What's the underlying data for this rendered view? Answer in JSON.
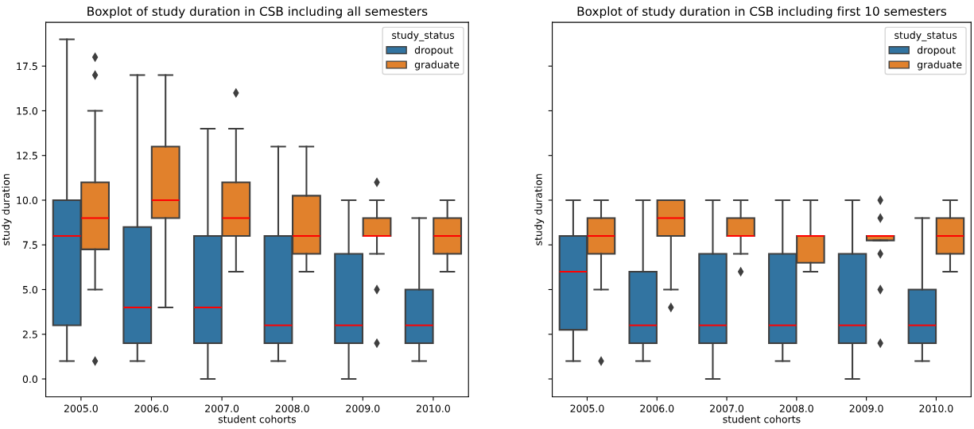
{
  "chart_data": [
    {
      "type": "box",
      "title": "Boxplot of study duration in CSB including all semesters",
      "xlabel": "student cohorts",
      "ylabel": "study duration",
      "legend_title": "study_status",
      "legend": "top right",
      "grid": false,
      "marker": "diamond",
      "categories": [
        "2005.0",
        "2006.0",
        "2007.0",
        "2008.0",
        "2009.0",
        "2010.0"
      ],
      "ylim": [
        -1,
        19.95
      ],
      "yticks": [
        {
          "value": 0,
          "label": "0.0"
        },
        {
          "value": 2.5,
          "label": "2.5"
        },
        {
          "value": 5,
          "label": "5.0"
        },
        {
          "value": 7.5,
          "label": "7.5"
        },
        {
          "value": 10,
          "label": "10.0"
        },
        {
          "value": 12.5,
          "label": "12.5"
        },
        {
          "value": 15,
          "label": "15.0"
        },
        {
          "value": 17.5,
          "label": "17.5"
        }
      ],
      "series": [
        {
          "name": "dropout",
          "color": "#3274a1",
          "boxes": [
            {
              "low": 1,
              "q1": 3,
              "median": 8,
              "q3": 10,
              "high": 19
            },
            {
              "low": 1,
              "q1": 2,
              "median": 4,
              "q3": 8.5,
              "high": 17
            },
            {
              "low": 0,
              "q1": 2,
              "median": 4,
              "q3": 8,
              "high": 14
            },
            {
              "low": 1,
              "q1": 2,
              "median": 3,
              "q3": 8,
              "high": 13
            },
            {
              "low": 0,
              "q1": 2,
              "median": 3,
              "q3": 7,
              "high": 10
            },
            {
              "low": 1,
              "q1": 2,
              "median": 3,
              "q3": 5,
              "high": 9
            }
          ]
        },
        {
          "name": "graduate",
          "color": "#e1812c",
          "boxes": [
            {
              "low": 5,
              "q1": 7.25,
              "median": 9,
              "q3": 11,
              "high": 15,
              "outliers": [
                1,
                17,
                18
              ]
            },
            {
              "low": 4,
              "q1": 9,
              "median": 10,
              "q3": 13,
              "high": 17
            },
            {
              "low": 6,
              "q1": 8,
              "median": 9,
              "q3": 11,
              "high": 14,
              "outliers": [
                16
              ]
            },
            {
              "low": 6,
              "q1": 7,
              "median": 8,
              "q3": 10.25,
              "high": 13
            },
            {
              "low": 7,
              "q1": 8,
              "median": 8,
              "q3": 9,
              "high": 10,
              "outliers": [
                2,
                5,
                11
              ]
            },
            {
              "low": 6,
              "q1": 7,
              "median": 8,
              "q3": 9,
              "high": 10
            }
          ]
        }
      ]
    },
    {
      "type": "box",
      "title": "Boxplot of study duration in CSB including first 10 semesters",
      "xlabel": "student cohorts",
      "ylabel": "study duration",
      "legend_title": "study_status",
      "legend": "top right",
      "grid": false,
      "marker": "diamond",
      "tick_labels": "x",
      "categories": [
        "2005.0",
        "2006.0",
        "2007.0",
        "2008.0",
        "2009.0",
        "2010.0"
      ],
      "ylim": [
        -1,
        19.95
      ],
      "yticks": [
        {
          "value": 0,
          "label": null
        },
        {
          "value": 2.5,
          "label": null
        },
        {
          "value": 5,
          "label": null
        },
        {
          "value": 7.5,
          "label": null
        },
        {
          "value": 10,
          "label": null
        },
        {
          "value": 12.5,
          "label": null
        },
        {
          "value": 15,
          "label": null
        },
        {
          "value": 17.5,
          "label": null
        }
      ],
      "series": [
        {
          "name": "dropout",
          "color": "#3274a1",
          "boxes": [
            {
              "low": 1,
              "q1": 2.75,
              "median": 6,
              "q3": 8,
              "high": 10
            },
            {
              "low": 1,
              "q1": 2,
              "median": 3,
              "q3": 6,
              "high": 10
            },
            {
              "low": 0,
              "q1": 2,
              "median": 3,
              "q3": 7,
              "high": 10
            },
            {
              "low": 1,
              "q1": 2,
              "median": 3,
              "q3": 7,
              "high": 10
            },
            {
              "low": 0,
              "q1": 2,
              "median": 3,
              "q3": 7,
              "high": 10
            },
            {
              "low": 1,
              "q1": 2,
              "median": 3,
              "q3": 5,
              "high": 9
            }
          ]
        },
        {
          "name": "graduate",
          "color": "#e1812c",
          "boxes": [
            {
              "low": 5,
              "q1": 7,
              "median": 8,
              "q3": 9,
              "high": 10,
              "outliers": [
                1
              ]
            },
            {
              "low": 5,
              "q1": 8,
              "median": 9,
              "q3": 10,
              "high": 10,
              "outliers": [
                4
              ]
            },
            {
              "low": 7,
              "q1": 8,
              "median": 8,
              "q3": 9,
              "high": 10,
              "outliers": [
                6
              ]
            },
            {
              "low": 6,
              "q1": 6.5,
              "median": 8,
              "q3": 8,
              "high": 10
            },
            {
              "low": 7.75,
              "q1": 7.75,
              "median": 8,
              "q3": 8,
              "high": 8,
              "outliers": [
                2,
                5,
                7,
                9,
                10
              ]
            },
            {
              "low": 6,
              "q1": 7,
              "median": 8,
              "q3": 9,
              "high": 10
            }
          ]
        }
      ]
    }
  ]
}
